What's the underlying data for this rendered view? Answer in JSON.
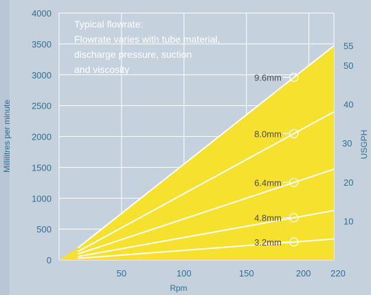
{
  "chart_data": {
    "type": "area",
    "title": "",
    "note_lines": [
      "Typical flowrate:",
      "Flowrate varies with tube material,",
      "discharge pressure, suction",
      "and viscosity"
    ],
    "xlabel": "Rpm",
    "ylabel": "Millilitres per minute",
    "y2label": "USGPH",
    "xlim": [
      0,
      220
    ],
    "ylim": [
      0,
      4000
    ],
    "x_ticks": [
      50,
      100,
      150,
      200,
      220
    ],
    "y_ticks": [
      0,
      500,
      1000,
      1500,
      2000,
      2500,
      3000,
      3500,
      4000
    ],
    "y2_ticks": [
      10,
      20,
      30,
      40,
      50,
      55
    ],
    "grid": true,
    "series": [
      {
        "name": "3.2mm",
        "x": [
          15,
          220
        ],
        "y": [
          25,
          340
        ]
      },
      {
        "name": "4.8mm",
        "x": [
          15,
          220
        ],
        "y": [
          55,
          800
        ]
      },
      {
        "name": "6.4mm",
        "x": [
          15,
          220
        ],
        "y": [
          95,
          1470
        ]
      },
      {
        "name": "8.0mm",
        "x": [
          15,
          220
        ],
        "y": [
          135,
          2400
        ]
      },
      {
        "name": "9.6mm",
        "x": [
          15,
          220
        ],
        "y": [
          195,
          3470
        ]
      }
    ],
    "label_rpm": 188,
    "colors": {
      "fill": "#f6e12e",
      "line": "#ffffff",
      "grid": "#ffffff",
      "tick_text": "#2f6f8f",
      "series_label": "#4b4b4b",
      "background": "#c6d1de"
    }
  }
}
